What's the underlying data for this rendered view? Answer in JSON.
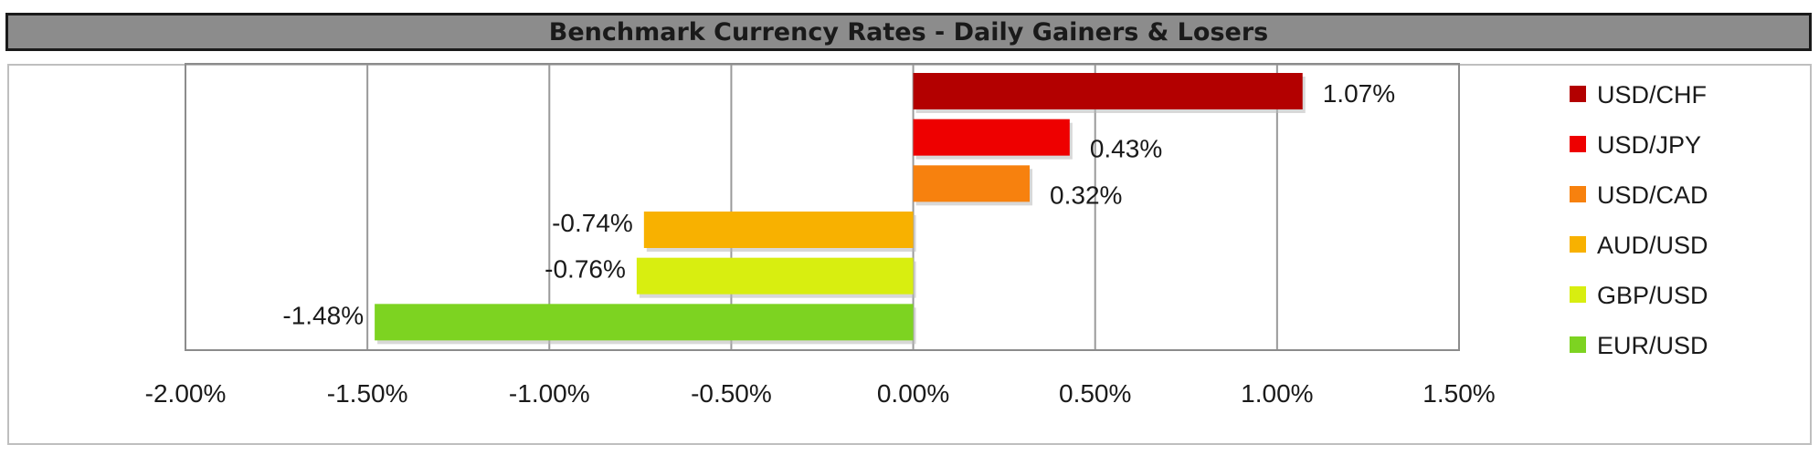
{
  "chart_data": {
    "type": "bar",
    "orientation": "horizontal",
    "title": "Benchmark Currency Rates - Daily Gainers & Losers",
    "categories": [
      "USD/CHF",
      "USD/JPY",
      "USD/CAD",
      "AUD/USD",
      "GBP/USD",
      "EUR/USD"
    ],
    "values": [
      1.07,
      0.43,
      0.32,
      -0.74,
      -0.76,
      -1.48
    ],
    "data_labels": [
      "1.07%",
      "0.43%",
      "0.32%",
      "-0.74%",
      "-0.76%",
      "-1.48%"
    ],
    "colors": [
      "#b30000",
      "#ee0000",
      "#f7810e",
      "#f8b100",
      "#d8ee10",
      "#7dd321"
    ],
    "xlim": [
      -2.0,
      1.5
    ],
    "xticks": [
      -2.0,
      -1.5,
      -1.0,
      -0.5,
      0.0,
      0.5,
      1.0,
      1.5
    ],
    "xtick_labels": [
      "-2.00%",
      "-1.50%",
      "-1.00%",
      "-0.50%",
      "0.00%",
      "0.50%",
      "1.00%",
      "1.50%"
    ],
    "grid": true,
    "legend_position": "right",
    "xlabel": "",
    "ylabel": ""
  }
}
